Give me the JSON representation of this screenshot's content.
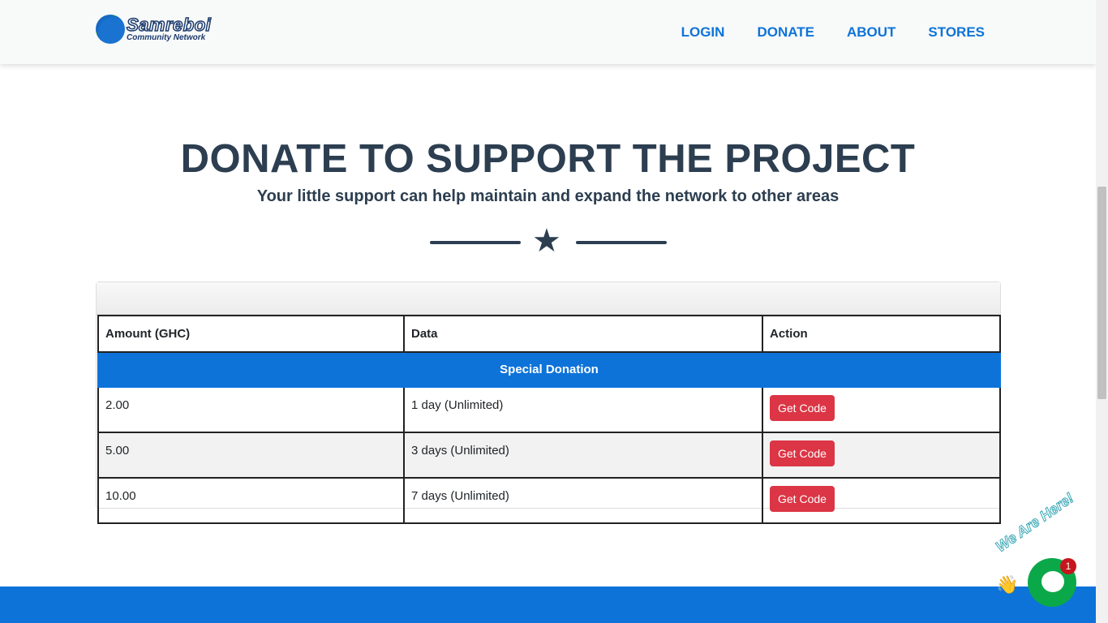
{
  "brand": {
    "name": "Samreboi",
    "tagline": "Community Network"
  },
  "nav": {
    "items": [
      "LOGIN",
      "DONATE",
      "ABOUT",
      "STORES"
    ]
  },
  "hero": {
    "title": "DONATE TO SUPPORT THE PROJECT",
    "subtitle": "Your little support can help maintain and expand the network to other areas",
    "divider_icon": "star-icon"
  },
  "table": {
    "headers": [
      "Amount (GHC)",
      "Data",
      "Action"
    ],
    "group_label": "Special Donation",
    "rows": [
      {
        "amount": "2.00",
        "data": "1 day (Unlimited)",
        "action": "Get Code"
      },
      {
        "amount": "5.00",
        "data": "3 days (Unlimited)",
        "action": "Get Code"
      },
      {
        "amount": "10.00",
        "data": "7 days (Unlimited)",
        "action": "Get Code"
      }
    ]
  },
  "chat": {
    "label": "We Are Here!",
    "badge": "1"
  },
  "colors": {
    "accent": "#0d73d9",
    "heading": "#2c3e50",
    "button": "#dc3545",
    "chat": "#0ba84a"
  }
}
